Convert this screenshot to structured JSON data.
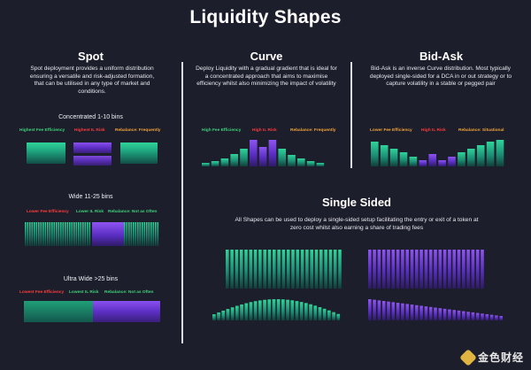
{
  "title": "Liquidity Shapes",
  "colors": {
    "background": "#1c1e2b",
    "green": "#3fd27a",
    "red": "#ff3b3b",
    "orange": "#f2a33a",
    "purple": "#6a38d8",
    "teal": "#1e9f7b"
  },
  "spot": {
    "heading": "Spot",
    "description": "Spot deployment provides a uniform distribution ensuring a versatile and risk-adjusted formation, that can be utilised in any type of market and conditions.",
    "concentrated": {
      "label": "Concentrated 1-10 bins",
      "tags": [
        "Highest Fee Efficiency",
        "Highest IL Risk",
        "Rebalance: Frequently"
      ]
    },
    "wide": {
      "label": "Wide 11-25 bins",
      "tags": [
        "Lower Fee Efficiency",
        "Lower IL Risk",
        "Rebalance: Not as Often"
      ]
    },
    "ultra_wide": {
      "label": "Ultra Wide >25 bins",
      "tags": [
        "Lowest Fee Efficiency",
        "Lowest IL Risk",
        "Rebalance: Not as Often"
      ]
    }
  },
  "curve": {
    "heading": "Curve",
    "description": "Deploy Liquidity with a gradual gradient that is ideal for a concentrated approach that aims to maximise efficiency whilst also minimizing the impact of volatility",
    "tags": [
      "High Fee Efficiency",
      "High IL Risk",
      "Rebalance: Frequently"
    ]
  },
  "bid_ask": {
    "heading": "Bid-Ask",
    "description": "Bid-Ask is an inverse Curve distribution. Most typically deployed single-sided for a DCA in or out strategy or to capture volatility in a stable or pegged pair",
    "tags": [
      "Lower Fee Efficiency",
      "High IL Risk",
      "Rebalance: Situational"
    ]
  },
  "single_sided": {
    "heading": "Single Sided",
    "description": "All Shapes can be used to deploy a single-sided setup facilitating the entry or exit of a token at zero cost whilst also earning a share of trading fees"
  },
  "footer": {
    "brand": "金色财经"
  }
}
